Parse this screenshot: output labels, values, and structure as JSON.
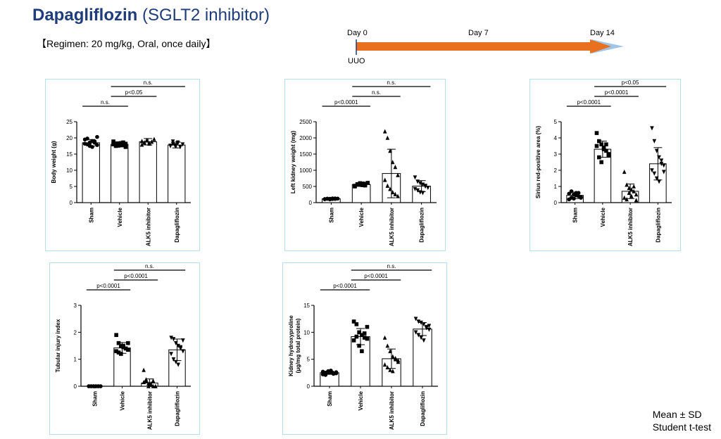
{
  "header": {
    "title_bold": "Dapagliflozin",
    "title_rest": "(SGLT2 inhibitor)",
    "regimen": "【Regimen: 20 mg/kg, Oral, once daily】"
  },
  "timeline": {
    "labels": [
      "Day 0",
      "Day 7",
      "Day 14"
    ],
    "event": "UUO"
  },
  "footer": {
    "stat1": "Mean ± SD",
    "stat2": "Student t-test"
  },
  "colors": {
    "arrow": "#e8701f",
    "arrow_tip": "#9fc6e7",
    "panel_border": "#b7dfe8",
    "title": "#1f3d7a"
  },
  "chart_data": [
    {
      "type": "bar",
      "ylabel": "Body weight (g)",
      "ylim": [
        0,
        25
      ],
      "yticks": [
        0,
        5,
        10,
        15,
        20,
        25
      ],
      "categories": [
        "Sham",
        "Vehicle",
        "ALK5 inhibitor",
        "Dapagliflozin"
      ],
      "markers": [
        "circle",
        "square",
        "triangle",
        "triangle-down"
      ],
      "values": [
        18.5,
        18.0,
        18.8,
        17.8
      ],
      "sd": [
        1.0,
        0.8,
        1.0,
        0.9
      ],
      "points": [
        [
          19.5,
          18,
          17.5,
          19,
          18.5,
          17.8,
          18.2,
          19.8,
          18.6,
          17.2,
          18.9,
          20.3
        ],
        [
          18,
          17.5,
          18.3,
          17.8,
          18.6,
          17.2,
          18.9,
          18.1,
          17.6,
          18.4,
          17.9,
          18.2
        ],
        [
          19,
          18.5,
          19.3,
          18.2,
          18.8,
          19.6,
          17.9,
          18.6,
          19.2,
          18.4
        ],
        [
          17.5,
          18.2,
          17.8,
          18.6,
          17.2,
          18,
          17.6,
          18.9,
          17.4,
          18.3
        ]
      ],
      "comparisons": [
        {
          "from": 0,
          "to": 1,
          "label": "n.s."
        },
        {
          "from": 1,
          "to": 2,
          "label": "p<0.05"
        },
        {
          "from": 1,
          "to": 3,
          "label": "n.s."
        }
      ]
    },
    {
      "type": "bar",
      "ylabel": "Left kidney weight (mg)",
      "ylim": [
        0,
        2500
      ],
      "yticks": [
        0,
        500,
        1000,
        1500,
        2000,
        2500
      ],
      "categories": [
        "Sham",
        "Vehicle",
        "ALK5 inhibitor",
        "Dapagliflozin"
      ],
      "markers": [
        "circle",
        "square",
        "triangle",
        "triangle-down"
      ],
      "values": [
        120,
        560,
        900,
        510
      ],
      "sd": [
        20,
        60,
        750,
        170
      ],
      "points": [
        [
          110,
          120,
          100,
          130,
          115,
          125,
          105,
          120,
          118,
          112,
          128
        ],
        [
          520,
          560,
          600,
          540,
          580,
          610,
          500,
          570,
          550,
          590,
          530
        ],
        [
          2200,
          2000,
          1600,
          1250,
          1100,
          850,
          700,
          520,
          420,
          320,
          260,
          200
        ],
        [
          780,
          650,
          600,
          560,
          500,
          460,
          420,
          380,
          320,
          300,
          520
        ]
      ],
      "comparisons": [
        {
          "from": 0,
          "to": 1,
          "label": "p<0.0001"
        },
        {
          "from": 1,
          "to": 2,
          "label": "n.s."
        },
        {
          "from": 1,
          "to": 3,
          "label": "n.s."
        }
      ]
    },
    {
      "type": "bar",
      "ylabel": "Sirius red-positive area (%)",
      "ylim": [
        0,
        5
      ],
      "yticks": [
        0,
        1,
        2,
        3,
        4,
        5
      ],
      "categories": [
        "Sham",
        "Vehicle",
        "ALK5 inhibitor",
        "Dapagliflozin"
      ],
      "markers": [
        "circle",
        "square",
        "triangle",
        "triangle-down"
      ],
      "values": [
        0.45,
        3.3,
        0.7,
        2.4
      ],
      "sd": [
        0.2,
        0.5,
        0.45,
        1.0
      ],
      "points": [
        [
          0.2,
          0.3,
          0.5,
          0.6,
          0.4,
          0.35,
          0.55,
          0.7,
          0.25,
          0.45,
          0.6,
          0.3
        ],
        [
          4.3,
          3.8,
          3.6,
          3.4,
          3.2,
          3.0,
          3.5,
          2.8,
          2.5,
          3.3,
          3.6,
          2.9
        ],
        [
          1.9,
          1.1,
          0.9,
          0.8,
          0.7,
          0.5,
          0.3,
          0.2,
          0.6,
          0.4,
          1.0,
          0.15
        ],
        [
          4.6,
          3.8,
          3.2,
          2.8,
          2.6,
          2.3,
          2.0,
          1.8,
          1.5,
          1.3,
          2.4,
          1.9
        ]
      ],
      "comparisons": [
        {
          "from": 0,
          "to": 1,
          "label": "p<0.0001"
        },
        {
          "from": 1,
          "to": 2,
          "label": "p<0.0001"
        },
        {
          "from": 1,
          "to": 3,
          "label": "p<0.05"
        }
      ]
    },
    {
      "type": "bar",
      "ylabel": "Tubular injury index",
      "ylim": [
        0,
        3
      ],
      "yticks": [
        0,
        1,
        2,
        3
      ],
      "categories": [
        "Sham",
        "Vehicle",
        "ALK5 inhibitor",
        "Dapagliflozin"
      ],
      "markers": [
        "circle",
        "square",
        "triangle",
        "triangle-down"
      ],
      "values": [
        0.0,
        1.42,
        0.12,
        1.35
      ],
      "sd": [
        0.0,
        0.2,
        0.15,
        0.4
      ],
      "points": [
        [
          0,
          0,
          0,
          0,
          0,
          0,
          0,
          0,
          0,
          0,
          0,
          0
        ],
        [
          1.9,
          1.6,
          1.5,
          1.45,
          1.4,
          1.35,
          1.3,
          1.25,
          1.2,
          1.5,
          1.4,
          1.6
        ],
        [
          0.6,
          0.2,
          0.1,
          0.05,
          0,
          0,
          0.15,
          0.25,
          0,
          0.1,
          0.2,
          0
        ],
        [
          1.8,
          1.75,
          1.6,
          1.5,
          1.4,
          1.3,
          1.2,
          1.0,
          0.9,
          0.8,
          1.45,
          1.7
        ]
      ],
      "comparisons": [
        {
          "from": 0,
          "to": 1,
          "label": "p<0.0001"
        },
        {
          "from": 1,
          "to": 2,
          "label": "p<0.0001"
        },
        {
          "from": 1,
          "to": 3,
          "label": "n.s."
        }
      ]
    },
    {
      "type": "bar",
      "ylabel": "Kidney hydroxyproline (μg/mg total protein)",
      "ylabel_lines": [
        "Kidney hydroxyproline",
        "(μg/mg total protein)"
      ],
      "ylim": [
        0,
        15
      ],
      "yticks": [
        0,
        5,
        10,
        15
      ],
      "categories": [
        "Sham",
        "Vehicle",
        "ALK5 inhibitor",
        "Dapagliflozin"
      ],
      "markers": [
        "circle",
        "square",
        "triangle",
        "triangle-down"
      ],
      "values": [
        2.5,
        9.2,
        5.1,
        10.6
      ],
      "sd": [
        0.3,
        1.5,
        1.8,
        1.2
      ],
      "points": [
        [
          2.2,
          2.5,
          2.8,
          2.6,
          2.3,
          2.4,
          2.7,
          2.1,
          2.5,
          2.9,
          2.4,
          2.6
        ],
        [
          12,
          11.5,
          10,
          9.5,
          9,
          8.8,
          8.5,
          9.2,
          7.5,
          6.5,
          9.8,
          11
        ],
        [
          9,
          7.5,
          6.5,
          5.5,
          5,
          4.5,
          4,
          3.5,
          3,
          2.8,
          5.2,
          4.8
        ],
        [
          12.5,
          12,
          11.8,
          11.5,
          11,
          10.5,
          10,
          9.5,
          9,
          8.5,
          10.8,
          11.2
        ]
      ],
      "comparisons": [
        {
          "from": 0,
          "to": 1,
          "label": "p<0.0001"
        },
        {
          "from": 1,
          "to": 2,
          "label": "p<0.0001"
        },
        {
          "from": 1,
          "to": 3,
          "label": "n.s."
        }
      ]
    }
  ]
}
